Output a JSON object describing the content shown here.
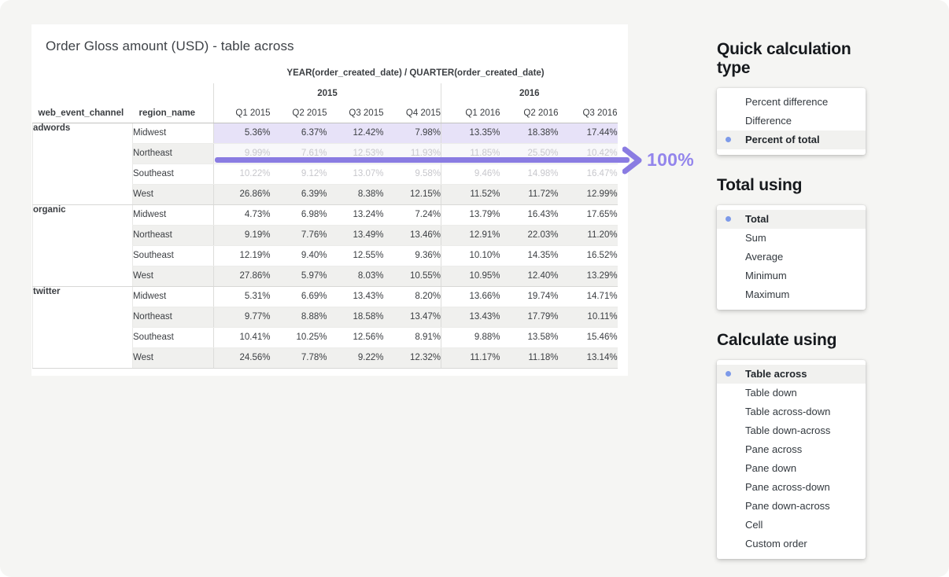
{
  "colors": {
    "page_bg": "#f5f5f3",
    "accent_purple": "#8a7ce2",
    "annotation_label_purple": "#9385ec",
    "highlight_row_bg": "#e7e2f8",
    "selected_dot_blue": "#7d9ae9",
    "selected_item_bg": "#f1f1ef",
    "row_stripe": "#f0f0ee"
  },
  "table_card": {
    "title": "Order Gloss amount (USD) - table across",
    "column_dimension_label": "YEAR(order_created_date) / QUARTER(order_created_date)",
    "row_headers": [
      "web_event_channel",
      "region_name"
    ],
    "year_groups": [
      {
        "label": "2015",
        "span": 4
      },
      {
        "label": "2016",
        "span": 3
      }
    ],
    "quarter_columns": [
      "Q1 2015",
      "Q2 2015",
      "Q3 2015",
      "Q4 2015",
      "Q1 2016",
      "Q2 2016",
      "Q3 2016"
    ],
    "groups": [
      {
        "channel": "adwords",
        "rows": [
          {
            "region": "Midwest",
            "state": "highlighted",
            "values": [
              "5.36%",
              "6.37%",
              "12.42%",
              "7.98%",
              "13.35%",
              "18.38%",
              "17.44%"
            ]
          },
          {
            "region": "Northeast",
            "state": "dimmed",
            "values": [
              "9.99%",
              "7.61%",
              "12.53%",
              "11.93%",
              "11.85%",
              "25.50%",
              "10.42%"
            ]
          },
          {
            "region": "Southeast",
            "state": "dimmed",
            "values": [
              "10.22%",
              "9.12%",
              "13.07%",
              "9.58%",
              "9.46%",
              "14.98%",
              "16.47%"
            ]
          },
          {
            "region": "West",
            "state": "normal",
            "values": [
              "26.86%",
              "6.39%",
              "8.38%",
              "12.15%",
              "11.52%",
              "11.72%",
              "12.99%"
            ]
          }
        ]
      },
      {
        "channel": "organic",
        "rows": [
          {
            "region": "Midwest",
            "state": "normal",
            "values": [
              "4.73%",
              "6.98%",
              "13.24%",
              "7.24%",
              "13.79%",
              "16.43%",
              "17.65%"
            ]
          },
          {
            "region": "Northeast",
            "state": "normal",
            "values": [
              "9.19%",
              "7.76%",
              "13.49%",
              "13.46%",
              "12.91%",
              "22.03%",
              "11.20%"
            ]
          },
          {
            "region": "Southeast",
            "state": "normal",
            "values": [
              "12.19%",
              "9.40%",
              "12.55%",
              "9.36%",
              "10.10%",
              "14.35%",
              "16.52%"
            ]
          },
          {
            "region": "West",
            "state": "normal",
            "values": [
              "27.86%",
              "5.97%",
              "8.03%",
              "10.55%",
              "10.95%",
              "12.40%",
              "13.29%"
            ]
          }
        ]
      },
      {
        "channel": "twitter",
        "rows": [
          {
            "region": "Midwest",
            "state": "normal",
            "values": [
              "5.31%",
              "6.69%",
              "13.43%",
              "8.20%",
              "13.66%",
              "19.74%",
              "14.71%"
            ]
          },
          {
            "region": "Northeast",
            "state": "normal",
            "values": [
              "9.77%",
              "8.88%",
              "18.58%",
              "13.47%",
              "13.43%",
              "17.79%",
              "10.11%"
            ]
          },
          {
            "region": "Southeast",
            "state": "normal",
            "values": [
              "10.41%",
              "10.25%",
              "12.56%",
              "8.91%",
              "9.88%",
              "13.58%",
              "15.46%"
            ]
          },
          {
            "region": "West",
            "state": "normal",
            "values": [
              "24.56%",
              "7.78%",
              "9.22%",
              "12.32%",
              "11.17%",
              "11.18%",
              "13.14%"
            ]
          }
        ]
      }
    ]
  },
  "annotation": {
    "label": "100%"
  },
  "panels": [
    {
      "title": "Quick calculation type",
      "items": [
        {
          "label": "Percent difference",
          "selected": false
        },
        {
          "label": "Difference",
          "selected": false
        },
        {
          "label": "Percent of total",
          "selected": true
        }
      ]
    },
    {
      "title": "Total using",
      "items": [
        {
          "label": "Total",
          "selected": true
        },
        {
          "label": "Sum",
          "selected": false
        },
        {
          "label": "Average",
          "selected": false
        },
        {
          "label": "Minimum",
          "selected": false
        },
        {
          "label": "Maximum",
          "selected": false
        }
      ]
    },
    {
      "title": "Calculate using",
      "items": [
        {
          "label": "Table across",
          "selected": true
        },
        {
          "label": "Table down",
          "selected": false
        },
        {
          "label": "Table across-down",
          "selected": false
        },
        {
          "label": "Table down-across",
          "selected": false
        },
        {
          "label": "Pane across",
          "selected": false
        },
        {
          "label": "Pane down",
          "selected": false
        },
        {
          "label": "Pane across-down",
          "selected": false
        },
        {
          "label": "Pane down-across",
          "selected": false
        },
        {
          "label": "Cell",
          "selected": false
        },
        {
          "label": "Custom order",
          "selected": false
        }
      ]
    }
  ]
}
